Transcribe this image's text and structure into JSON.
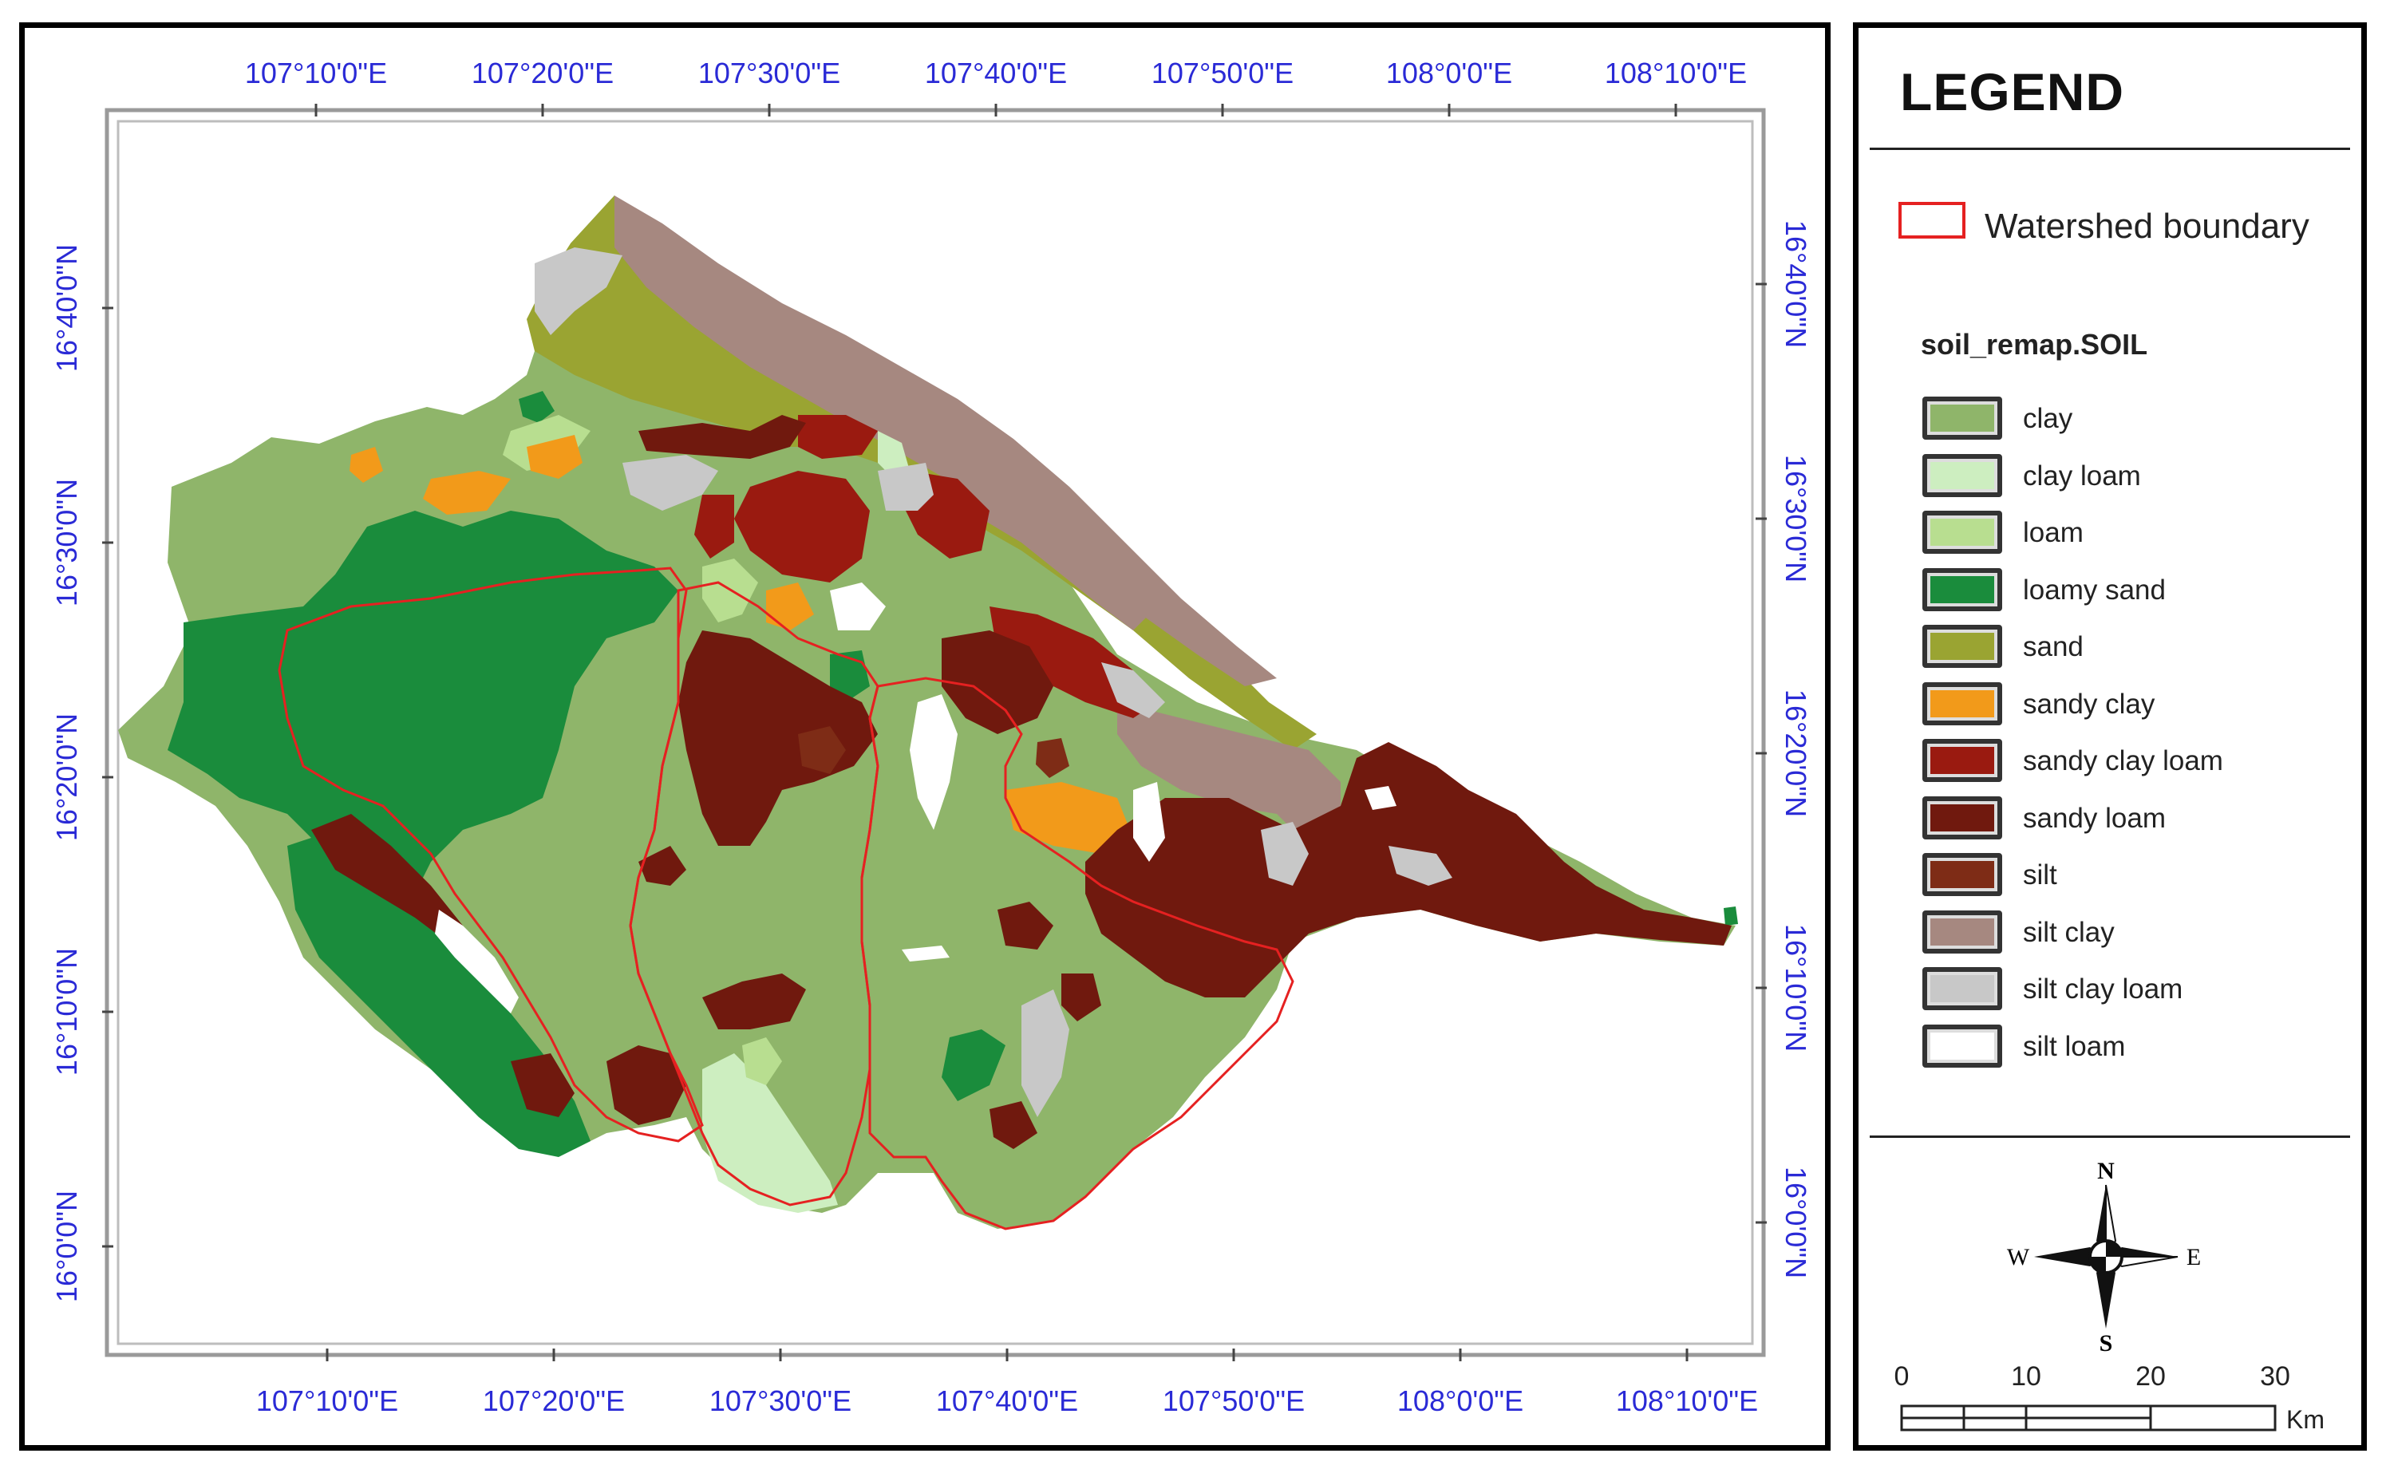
{
  "map": {
    "lon_labels": [
      "107°10'0\"E",
      "107°20'0\"E",
      "107°30'0\"E",
      "107°40'0\"E",
      "107°50'0\"E",
      "108°0'0\"E",
      "108°10'0\"E"
    ],
    "lat_labels_left": [
      "16°40'0\"N",
      "16°30'0\"N",
      "16°20'0\"N",
      "16°10'0\"N",
      "16°0'0\"N"
    ],
    "lat_labels_right": [
      "16°40'0\"N",
      "16°30'0\"N",
      "16°20'0\"N",
      "16°10'0\"N",
      "16°0'0\"N"
    ],
    "colors": {
      "clay": "#8fb56a",
      "clay_loam": "#cdeec0",
      "loam": "#b8de90",
      "loamy_sand": "#1a8c3c",
      "sand": "#9aa432",
      "sandy_clay": "#f29a1a",
      "sandy_clay_loam": "#9a1a10",
      "sandy_loam": "#70190e",
      "silt": "#7e2c16",
      "silt_clay": "#a68880",
      "silt_clay_loam": "#c8c8c8",
      "silt_loam": "#ffffff",
      "boundary": "#e52121",
      "coord_text": "#2a2ad6"
    }
  },
  "legend": {
    "title": "LEGEND",
    "boundary_label": "Watershed boundary",
    "soil_title": "soil_remap.SOIL",
    "items": [
      {
        "label": "clay",
        "color": "#8fb56a"
      },
      {
        "label": "clay loam",
        "color": "#cdeec0"
      },
      {
        "label": "loam",
        "color": "#b8de90"
      },
      {
        "label": "loamy sand",
        "color": "#1a8c3c"
      },
      {
        "label": "sand",
        "color": "#9aa432"
      },
      {
        "label": "sandy clay",
        "color": "#f29a1a"
      },
      {
        "label": "sandy clay loam",
        "color": "#9a1a10"
      },
      {
        "label": "sandy loam",
        "color": "#70190e"
      },
      {
        "label": "silt",
        "color": "#7e2c16"
      },
      {
        "label": "silt clay",
        "color": "#a68880"
      },
      {
        "label": "silt clay loam",
        "color": "#c8c8c8"
      },
      {
        "label": "silt loam",
        "color": "#ffffff"
      }
    ]
  },
  "compass": {
    "n": "N",
    "s": "S",
    "e": "E",
    "w": "W"
  },
  "scale_bar": {
    "ticks": [
      "0",
      "10",
      "20",
      "30"
    ],
    "unit": "Km"
  }
}
